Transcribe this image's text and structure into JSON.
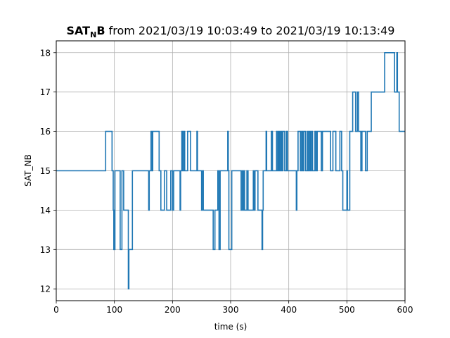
{
  "chart_data": {
    "type": "line",
    "title": {
      "main": "SAT",
      "sub": "N",
      "tail": "B",
      "rest": " from 2021/03/19 10:03:49 to 2021/03/19 10:13:49"
    },
    "xlabel": "time (s)",
    "ylabel": "SAT_NB",
    "xlim": [
      0,
      600
    ],
    "ylim": [
      11.7,
      18.3
    ],
    "xticks": [
      0,
      100,
      200,
      300,
      400,
      500,
      600
    ],
    "yticks": [
      12,
      13,
      14,
      15,
      16,
      17,
      18
    ],
    "grid": true,
    "line_color": "#1f77b4",
    "step": true,
    "series": [
      {
        "x": [
          0,
          85,
          96,
          98,
          99,
          100,
          101,
          104,
          110,
          113,
          116,
          118,
          124,
          125,
          127,
          131,
          132,
          159,
          160,
          161,
          163,
          165,
          166,
          176,
          177,
          180,
          186,
          190,
          193,
          197,
          200,
          202,
          203,
          213,
          214,
          216,
          217,
          219,
          221,
          226,
          231,
          241,
          242,
          243,
          248,
          250,
          251,
          253,
          256,
          264,
          270,
          273,
          275,
          278,
          280,
          282,
          283,
          287,
          295,
          296,
          297,
          302,
          303,
          306,
          318,
          320,
          322,
          323,
          324,
          328,
          330,
          339,
          340,
          342,
          347,
          349,
          354,
          355,
          356,
          358,
          361,
          362,
          370,
          371,
          372,
          379,
          380,
          382,
          383,
          384,
          385,
          387,
          388,
          390,
          393,
          396,
          398,
          410,
          413,
          414,
          416,
          418,
          420,
          422,
          424,
          426,
          429,
          432,
          433,
          435,
          437,
          439,
          441,
          444,
          445,
          447,
          449,
          452,
          456,
          458,
          472,
          476,
          481,
          486,
          488,
          491,
          493,
          500,
          501,
          502,
          503,
          505,
          510,
          515,
          518,
          520,
          523,
          524,
          526,
          532,
          535,
          542,
          545,
          555,
          560,
          565,
          580,
          582,
          586,
          587,
          588,
          590,
          593,
          595,
          598,
          600
        ],
        "y": [
          15,
          16,
          15,
          14,
          13,
          13,
          15,
          15,
          13,
          15,
          14,
          14,
          12,
          13,
          13,
          15,
          15,
          14,
          15,
          15,
          16,
          15,
          16,
          16,
          15,
          14,
          15,
          14,
          14,
          15,
          14,
          15,
          15,
          14,
          15,
          16,
          15,
          16,
          15,
          16,
          15,
          15,
          16,
          15,
          15,
          14,
          15,
          14,
          14,
          14,
          13,
          14,
          14,
          15,
          13,
          15,
          15,
          15,
          16,
          15,
          13,
          15,
          15,
          15,
          14,
          15,
          14,
          15,
          14,
          15,
          14,
          15,
          14,
          15,
          14,
          14,
          13,
          14,
          15,
          15,
          16,
          15,
          16,
          16,
          15,
          16,
          15,
          16,
          15,
          16,
          15,
          16,
          15,
          16,
          15,
          16,
          15,
          15,
          14,
          15,
          16,
          16,
          15,
          16,
          15,
          16,
          15,
          16,
          15,
          16,
          15,
          16,
          15,
          15,
          16,
          15,
          16,
          16,
          15,
          16,
          15,
          16,
          15,
          15,
          16,
          15,
          14,
          15,
          14,
          14,
          14,
          16,
          17,
          16,
          17,
          16,
          16,
          15,
          16,
          15,
          16,
          17,
          17,
          17,
          17,
          18,
          18,
          17,
          18,
          17,
          17,
          16,
          16,
          16,
          16,
          16
        ]
      }
    ]
  }
}
